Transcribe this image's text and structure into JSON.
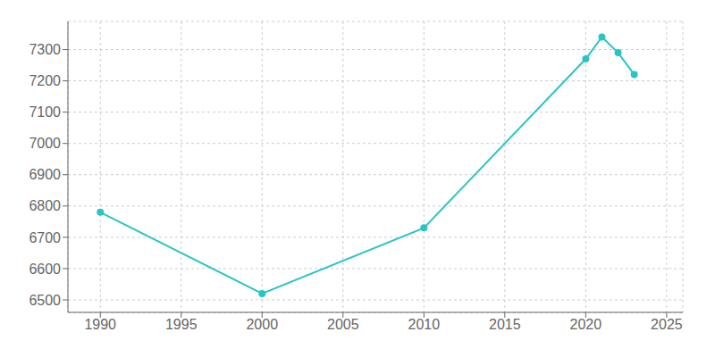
{
  "chart_data": {
    "type": "line",
    "x": [
      1990,
      2000,
      2010,
      2020,
      2021,
      2022,
      2023
    ],
    "values": [
      6780,
      6520,
      6730,
      7270,
      7340,
      7290,
      7220
    ],
    "color": "#2BC4C4",
    "marker": "circle",
    "line_style": "solid",
    "xlim": [
      1988,
      2026
    ],
    "xticks": [
      1990,
      1995,
      2000,
      2005,
      2010,
      2015,
      2020,
      2025
    ],
    "ylim": [
      6460,
      7390
    ],
    "yticks": [
      6500,
      6600,
      6700,
      6800,
      6900,
      7000,
      7100,
      7200,
      7300
    ],
    "grid": true
  }
}
